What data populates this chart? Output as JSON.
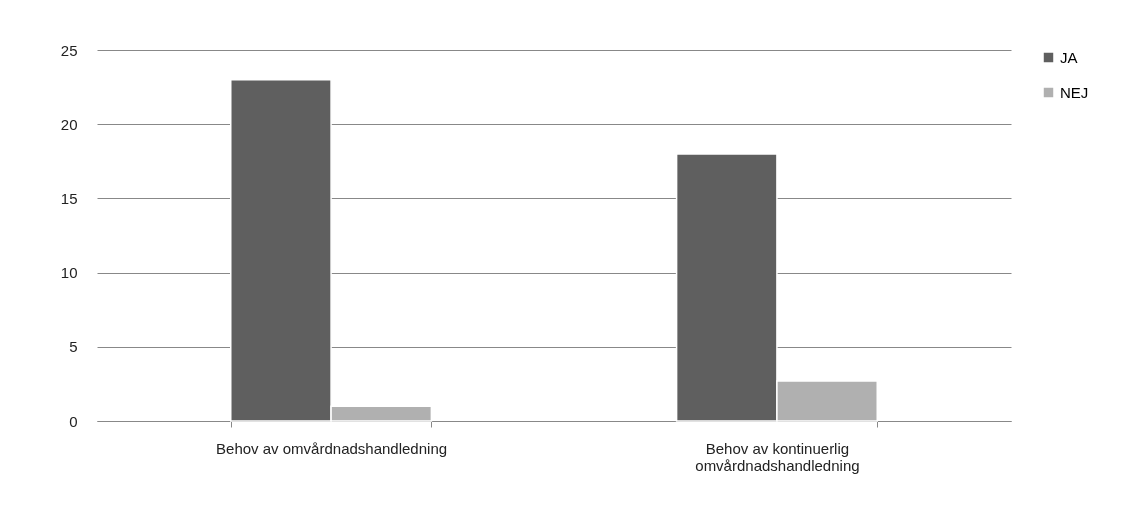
{
  "chart_data": {
    "type": "bar",
    "categories": [
      "Behov av omvårdnadshandledning",
      "Behov av kontinuerlig omvårdnadshandledning"
    ],
    "series": [
      {
        "name": "JA",
        "color": "#5f5f5f",
        "values": [
          23,
          18
        ]
      },
      {
        "name": "NEJ",
        "color": "#b0b0b0",
        "values": [
          1,
          2.7
        ]
      }
    ],
    "ylim": [
      0,
      25
    ],
    "yticks": [
      0,
      5,
      10,
      15,
      20,
      25
    ],
    "grid": "y",
    "legend": "right"
  }
}
